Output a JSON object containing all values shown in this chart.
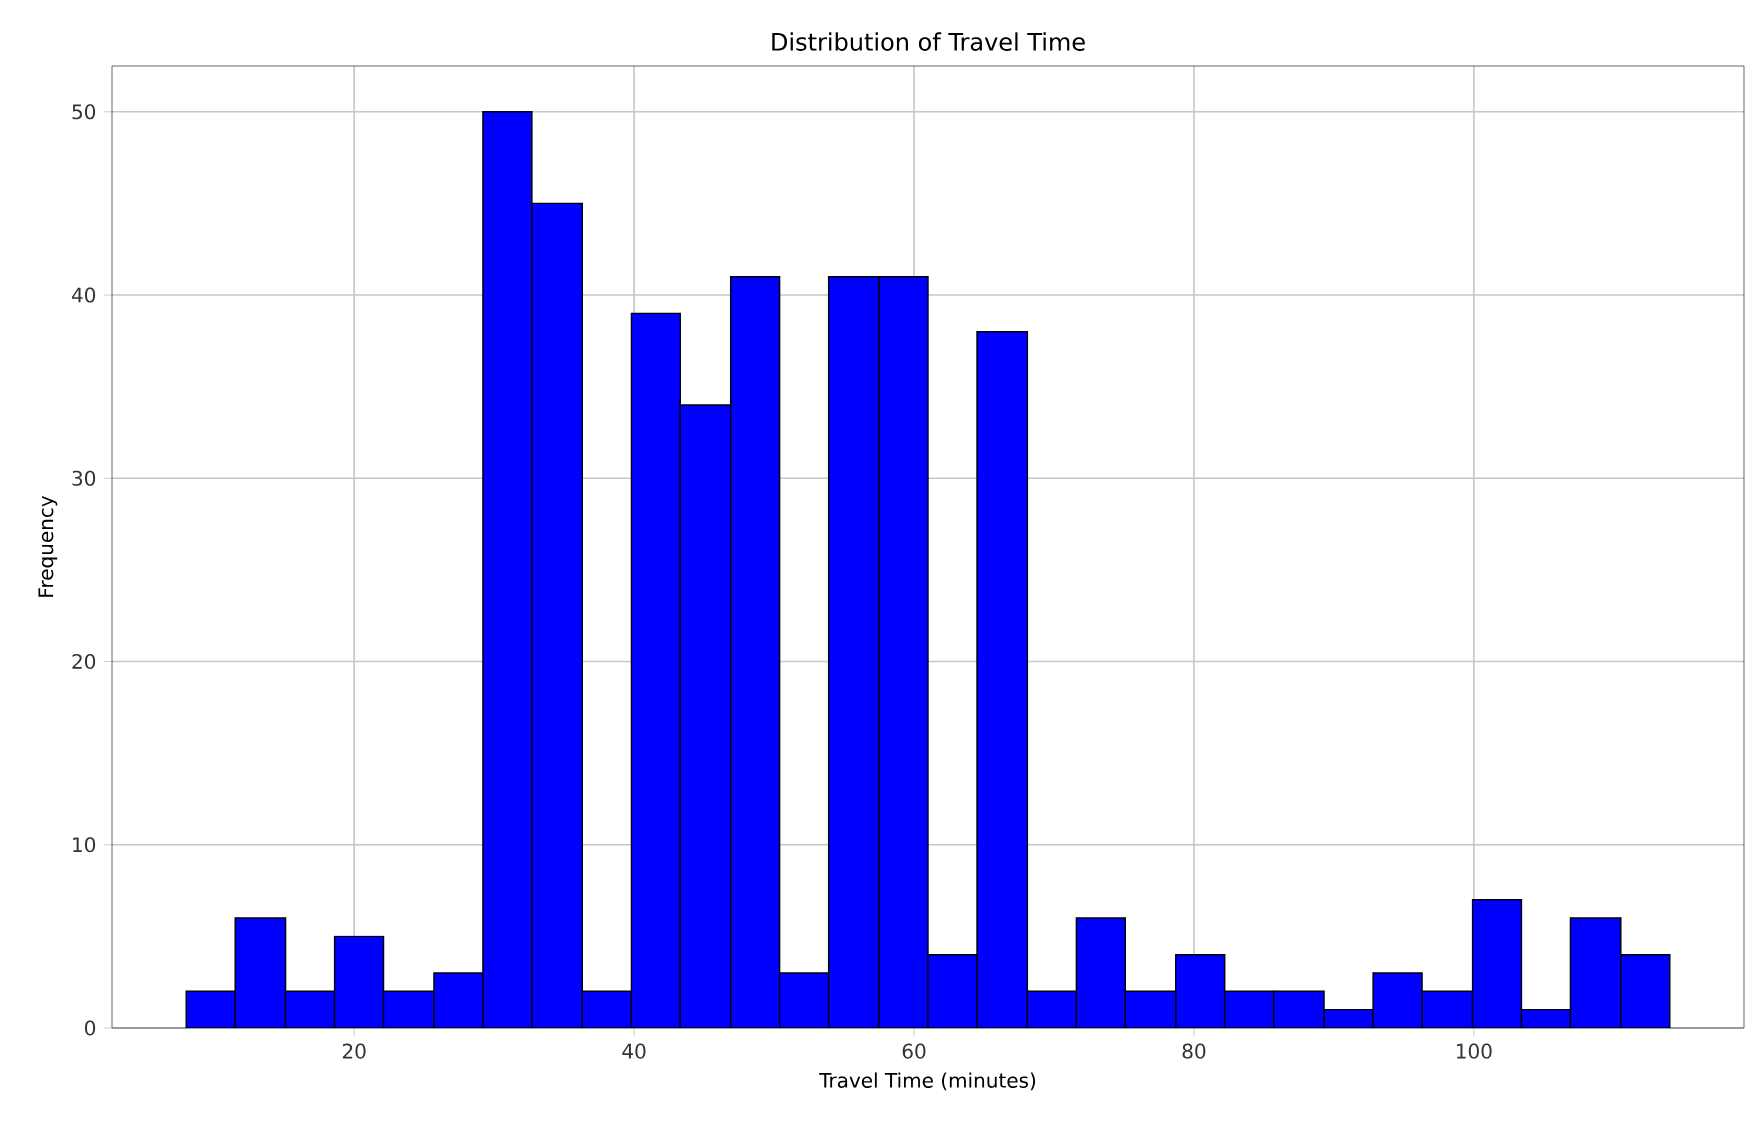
{
  "chart_data": {
    "type": "histogram",
    "title": "Distribution of Travel Time",
    "xlabel": "Travel Time (minutes)",
    "ylabel": "Frequency",
    "bins": [
      8.0,
      11.5,
      15.1,
      18.6,
      22.1,
      25.7,
      29.2,
      32.7,
      36.3,
      39.8,
      43.3,
      46.9,
      50.4,
      53.9,
      57.5,
      61.0,
      64.5,
      68.1,
      71.6,
      75.1,
      78.7,
      82.2,
      85.7,
      89.3,
      92.8,
      96.3,
      99.9,
      103.4,
      106.9,
      110.5,
      114.0
    ],
    "values": [
      2,
      6,
      2,
      5,
      2,
      3,
      50,
      45,
      2,
      39,
      34,
      41,
      3,
      41,
      41,
      4,
      38,
      2,
      6,
      2,
      4,
      2,
      2,
      1,
      3,
      2,
      7,
      1,
      6,
      4
    ],
    "color": "#0000ff",
    "xlim": [
      2.7,
      119.3
    ],
    "ylim": [
      0,
      52.5
    ],
    "xticks": [
      20,
      40,
      60,
      80,
      100
    ],
    "yticks": [
      0,
      10,
      20,
      30,
      40,
      50
    ],
    "grid": true
  }
}
